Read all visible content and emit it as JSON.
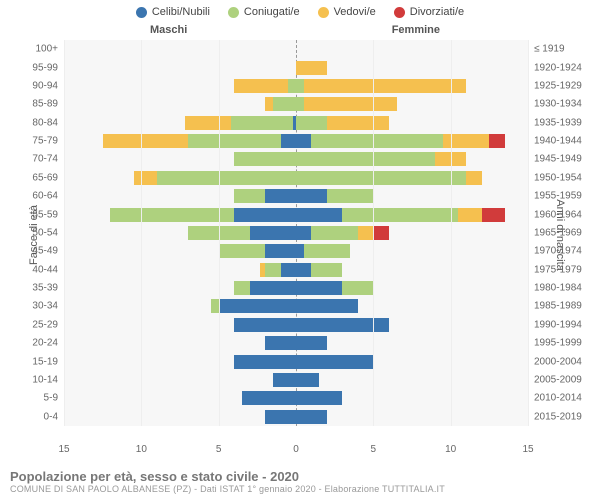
{
  "legend": [
    {
      "label": "Celibi/Nubili",
      "color": "#3b75af"
    },
    {
      "label": "Coniugati/e",
      "color": "#aed17e"
    },
    {
      "label": "Vedovi/e",
      "color": "#f5c04f"
    },
    {
      "label": "Divorziati/e",
      "color": "#d13b3b"
    }
  ],
  "headers": {
    "male": "Maschi",
    "female": "Femmine"
  },
  "axes": {
    "left": "Fasce di età",
    "right": "Anni di nascita"
  },
  "x": {
    "max": 15,
    "ticks": [
      15,
      10,
      5,
      0,
      5,
      10,
      15
    ]
  },
  "age_labels": [
    "100+",
    "95-99",
    "90-94",
    "85-89",
    "80-84",
    "75-79",
    "70-74",
    "65-69",
    "60-64",
    "55-59",
    "50-54",
    "45-49",
    "40-44",
    "35-39",
    "30-34",
    "25-29",
    "20-24",
    "15-19",
    "10-14",
    "5-9",
    "0-4"
  ],
  "birth_labels": [
    "≤ 1919",
    "1920-1924",
    "1925-1929",
    "1930-1934",
    "1935-1939",
    "1940-1944",
    "1945-1949",
    "1950-1954",
    "1955-1959",
    "1960-1964",
    "1965-1969",
    "1970-1974",
    "1975-1979",
    "1980-1984",
    "1985-1989",
    "1990-1994",
    "1995-1999",
    "2000-2004",
    "2005-2009",
    "2010-2014",
    "2015-2019"
  ],
  "rows": [
    {
      "m": [
        0,
        0,
        0,
        0
      ],
      "f": [
        0,
        0,
        0,
        0
      ]
    },
    {
      "m": [
        0,
        0,
        0,
        0
      ],
      "f": [
        0,
        0,
        2,
        0
      ]
    },
    {
      "m": [
        0,
        0.5,
        3.5,
        0
      ],
      "f": [
        0,
        0.5,
        10.5,
        0
      ]
    },
    {
      "m": [
        0,
        1.5,
        0.5,
        0
      ],
      "f": [
        0,
        0.5,
        6,
        0
      ]
    },
    {
      "m": [
        0.2,
        4,
        3,
        0
      ],
      "f": [
        0,
        2,
        4,
        0
      ]
    },
    {
      "m": [
        1,
        6,
        5.5,
        0
      ],
      "f": [
        1,
        8.5,
        3,
        1
      ]
    },
    {
      "m": [
        0,
        4,
        0,
        0
      ],
      "f": [
        0,
        9,
        2,
        0
      ]
    },
    {
      "m": [
        0,
        9,
        1.5,
        0
      ],
      "f": [
        0,
        11,
        1,
        0
      ]
    },
    {
      "m": [
        2,
        2,
        0,
        0
      ],
      "f": [
        2,
        3,
        0,
        0
      ]
    },
    {
      "m": [
        4,
        8,
        0,
        0
      ],
      "f": [
        3,
        7.5,
        1.5,
        1.5
      ]
    },
    {
      "m": [
        3,
        4,
        0,
        0
      ],
      "f": [
        1,
        3,
        1,
        1
      ]
    },
    {
      "m": [
        2,
        3,
        0,
        0
      ],
      "f": [
        0.5,
        3,
        0,
        0
      ]
    },
    {
      "m": [
        1,
        1,
        0.3,
        0
      ],
      "f": [
        1,
        2,
        0,
        0
      ]
    },
    {
      "m": [
        3,
        1,
        0,
        0
      ],
      "f": [
        3,
        2,
        0,
        0
      ]
    },
    {
      "m": [
        5,
        0.5,
        0,
        0
      ],
      "f": [
        4,
        0,
        0,
        0
      ]
    },
    {
      "m": [
        4,
        0,
        0,
        0
      ],
      "f": [
        6,
        0,
        0,
        0
      ]
    },
    {
      "m": [
        2,
        0,
        0,
        0
      ],
      "f": [
        2,
        0,
        0,
        0
      ]
    },
    {
      "m": [
        4,
        0,
        0,
        0
      ],
      "f": [
        5,
        0,
        0,
        0
      ]
    },
    {
      "m": [
        1.5,
        0,
        0,
        0
      ],
      "f": [
        1.5,
        0,
        0,
        0
      ]
    },
    {
      "m": [
        3.5,
        0,
        0,
        0
      ],
      "f": [
        3,
        0,
        0,
        0
      ]
    },
    {
      "m": [
        2,
        0,
        0,
        0
      ],
      "f": [
        2,
        0,
        0,
        0
      ]
    }
  ],
  "footer": {
    "title": "Popolazione per età, sesso e stato civile - 2020",
    "sub": "COMUNE DI SAN PAOLO ALBANESE (PZ) - Dati ISTAT 1° gennaio 2020 - Elaborazione TUTTITALIA.IT"
  }
}
